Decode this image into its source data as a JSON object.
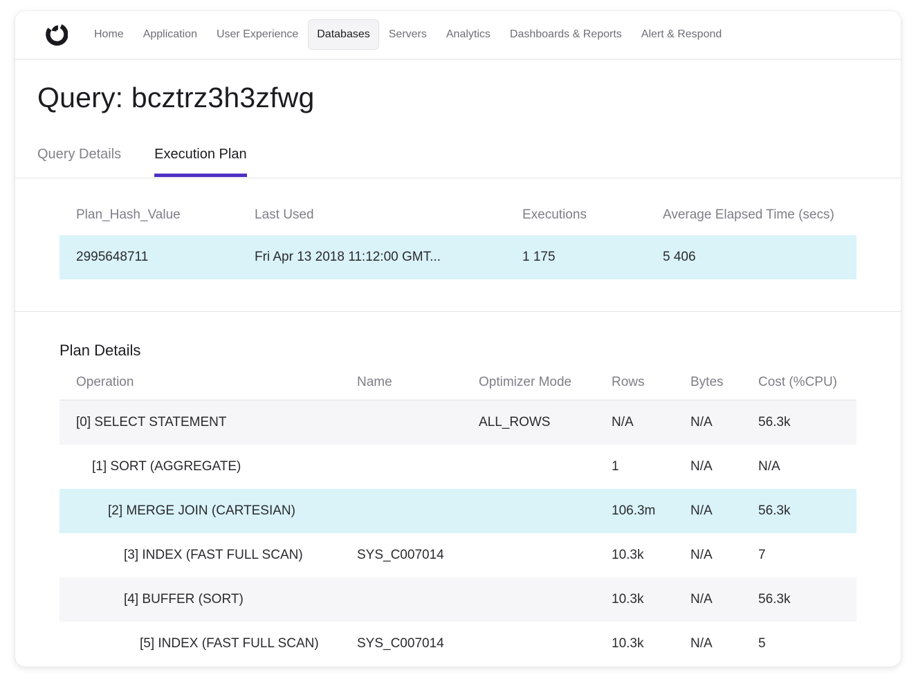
{
  "nav": {
    "items": [
      {
        "label": "Home",
        "active": false
      },
      {
        "label": "Application",
        "active": false
      },
      {
        "label": "User Experience",
        "active": false
      },
      {
        "label": "Databases",
        "active": true
      },
      {
        "label": "Servers",
        "active": false
      },
      {
        "label": "Analytics",
        "active": false
      },
      {
        "label": "Dashboards & Reports",
        "active": false
      },
      {
        "label": "Alert & Respond",
        "active": false
      }
    ]
  },
  "page": {
    "title": "Query: bcztrz3h3zfwg"
  },
  "tabs": [
    {
      "label": "Query Details",
      "active": false
    },
    {
      "label": "Execution Plan",
      "active": true
    }
  ],
  "summary": {
    "headers": {
      "plan_hash": "Plan_Hash_Value",
      "last_used": "Last Used",
      "executions": "Executions",
      "avg_elapsed": "Average Elapsed Time (secs)"
    },
    "row": {
      "plan_hash": "2995648711",
      "last_used": "Fri Apr 13 2018 11:12:00 GMT...",
      "executions": "1 175",
      "avg_elapsed": "5 406"
    }
  },
  "plan_details": {
    "title": "Plan Details",
    "headers": {
      "operation": "Operation",
      "name": "Name",
      "optimizer_mode": "Optimizer Mode",
      "rows": "Rows",
      "bytes": "Bytes",
      "cost": "Cost (%CPU)"
    },
    "rows": [
      {
        "operation": "[0] SELECT STATEMENT",
        "depth": 0,
        "name": "",
        "optimizer_mode": "ALL_ROWS",
        "rows": "N/A",
        "bytes": "N/A",
        "cost": "56.3k",
        "style": "alt"
      },
      {
        "operation": "[1] SORT (AGGREGATE)",
        "depth": 1,
        "name": "",
        "optimizer_mode": "",
        "rows": "1",
        "bytes": "N/A",
        "cost": "N/A",
        "style": "plain"
      },
      {
        "operation": "[2] MERGE JOIN (CARTESIAN)",
        "depth": 2,
        "name": "",
        "optimizer_mode": "",
        "rows": "106.3m",
        "bytes": "N/A",
        "cost": "56.3k",
        "style": "highlight"
      },
      {
        "operation": "[3] INDEX (FAST FULL SCAN)",
        "depth": 3,
        "name": "SYS_C007014",
        "optimizer_mode": "",
        "rows": "10.3k",
        "bytes": "N/A",
        "cost": "7",
        "style": "plain"
      },
      {
        "operation": "[4] BUFFER (SORT)",
        "depth": 3,
        "name": "",
        "optimizer_mode": "",
        "rows": "10.3k",
        "bytes": "N/A",
        "cost": "56.3k",
        "style": "alt"
      },
      {
        "operation": "[5] INDEX (FAST FULL SCAN)",
        "depth": 4,
        "name": "SYS_C007014",
        "optimizer_mode": "",
        "rows": "10.3k",
        "bytes": "N/A",
        "cost": "5",
        "style": "plain"
      }
    ]
  },
  "colors": {
    "accent": "#4f2fc4",
    "row_highlight": "#d9f3f9",
    "row_alt": "#f6f6f8"
  },
  "icons": {
    "logo": "brand-logo-icon"
  }
}
